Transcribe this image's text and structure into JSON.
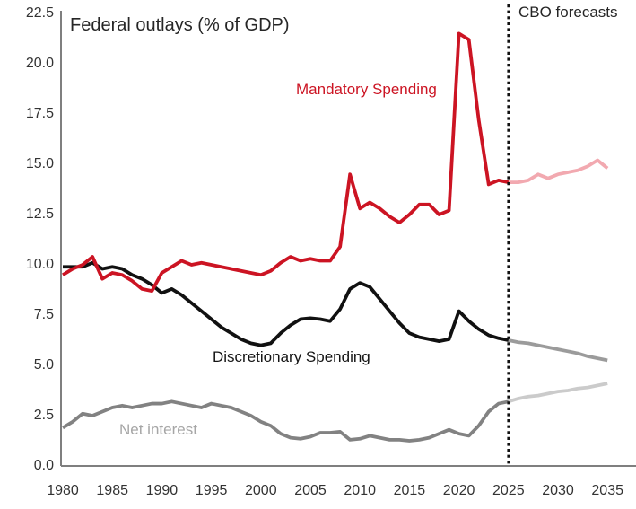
{
  "chart_data": {
    "type": "line",
    "title": "Federal outlays (% of GDP)",
    "xlabel": "",
    "ylabel": "Federal outlays (% of GDP)",
    "xlim": [
      1979.8,
      2037
    ],
    "ylim": [
      0,
      22.5
    ],
    "grid": false,
    "legend_position": "inline-labels",
    "axis_color": "#7f7f7f",
    "tick_color": "#333333",
    "xticks": {
      "values": [
        1980,
        1985,
        1990,
        1995,
        2000,
        2005,
        2010,
        2015,
        2020,
        2025,
        2030,
        2035
      ],
      "labels": [
        "1980",
        "1985",
        "1990",
        "1995",
        "2000",
        "2005",
        "2010",
        "2015",
        "2020",
        "2025",
        "2030",
        "2035"
      ]
    },
    "yticks": {
      "values": [
        0,
        2.5,
        5,
        7.5,
        10,
        12.5,
        15,
        17.5,
        20,
        22.5
      ],
      "labels": [
        "0.0",
        "2.5",
        "5.0",
        "7.5",
        "10.0",
        "12.5",
        "15.0",
        "17.5",
        "20.0",
        "22.5"
      ]
    },
    "forecast_divider": {
      "year": 2025,
      "label": "CBO forecasts",
      "style": "dotted-vertical-line",
      "color": "#111111"
    },
    "annotations": {
      "cbo_forecasts": {
        "text": "CBO forecasts",
        "color": "#262626"
      },
      "mandatory_label": {
        "text": "Mandatory Spending",
        "color": "#cc1423"
      },
      "discretionary_label": {
        "text": "Discretionary Spending",
        "color": "#141414"
      },
      "net_interest_label": {
        "text": "Net interest",
        "color": "#a6a6a6"
      }
    },
    "series": [
      {
        "name": "Net interest (CBO forecast)",
        "segment": "forecast",
        "color": "#cbcbcb",
        "years": [
          2025,
          2026,
          2027,
          2028,
          2029,
          2030,
          2031,
          2032,
          2033,
          2034,
          2035
        ],
        "values": [
          3.2,
          3.35,
          3.45,
          3.5,
          3.6,
          3.7,
          3.75,
          3.85,
          3.9,
          4.0,
          4.1
        ]
      },
      {
        "name": "Net interest",
        "segment": "historical",
        "color": "#828282",
        "years": [
          1980,
          1981,
          1982,
          1983,
          1984,
          1985,
          1986,
          1987,
          1988,
          1989,
          1990,
          1991,
          1992,
          1993,
          1994,
          1995,
          1996,
          1997,
          1998,
          1999,
          2000,
          2001,
          2002,
          2003,
          2004,
          2005,
          2006,
          2007,
          2008,
          2009,
          2010,
          2011,
          2012,
          2013,
          2014,
          2015,
          2016,
          2017,
          2018,
          2019,
          2020,
          2021,
          2022,
          2023,
          2024,
          2025
        ],
        "values": [
          1.9,
          2.2,
          2.6,
          2.5,
          2.7,
          2.9,
          3.0,
          2.9,
          3.0,
          3.1,
          3.1,
          3.2,
          3.1,
          3.0,
          2.9,
          3.1,
          3.0,
          2.9,
          2.7,
          2.5,
          2.2,
          2.0,
          1.6,
          1.4,
          1.35,
          1.45,
          1.65,
          1.65,
          1.7,
          1.3,
          1.35,
          1.5,
          1.4,
          1.3,
          1.3,
          1.25,
          1.3,
          1.4,
          1.6,
          1.8,
          1.6,
          1.5,
          2.0,
          2.7,
          3.1,
          3.2
        ]
      },
      {
        "name": "Discretionary Spending (CBO forecast)",
        "segment": "forecast",
        "color": "#9b9b9b",
        "years": [
          2025,
          2026,
          2027,
          2028,
          2029,
          2030,
          2031,
          2032,
          2033,
          2034,
          2035
        ],
        "values": [
          6.25,
          6.15,
          6.1,
          6.0,
          5.9,
          5.8,
          5.7,
          5.6,
          5.45,
          5.35,
          5.25
        ]
      },
      {
        "name": "Discretionary Spending",
        "segment": "historical",
        "color": "#111111",
        "years": [
          1980,
          1981,
          1982,
          1983,
          1984,
          1985,
          1986,
          1987,
          1988,
          1989,
          1990,
          1991,
          1992,
          1993,
          1994,
          1995,
          1996,
          1997,
          1998,
          1999,
          2000,
          2001,
          2002,
          2003,
          2004,
          2005,
          2006,
          2007,
          2008,
          2009,
          2010,
          2011,
          2012,
          2013,
          2014,
          2015,
          2016,
          2017,
          2018,
          2019,
          2020,
          2021,
          2022,
          2023,
          2024,
          2025
        ],
        "values": [
          9.9,
          9.9,
          9.9,
          10.1,
          9.8,
          9.9,
          9.8,
          9.5,
          9.3,
          9.0,
          8.6,
          8.8,
          8.5,
          8.1,
          7.7,
          7.3,
          6.9,
          6.6,
          6.3,
          6.1,
          6.0,
          6.1,
          6.6,
          7.0,
          7.3,
          7.35,
          7.3,
          7.2,
          7.8,
          8.8,
          9.1,
          8.9,
          8.3,
          7.7,
          7.1,
          6.6,
          6.4,
          6.3,
          6.2,
          6.3,
          7.7,
          7.2,
          6.8,
          6.5,
          6.35,
          6.25
        ]
      },
      {
        "name": "Mandatory Spending (CBO forecast)",
        "segment": "forecast",
        "color": "#f2a9b0",
        "years": [
          2025,
          2026,
          2027,
          2028,
          2029,
          2030,
          2031,
          2032,
          2033,
          2034,
          2035
        ],
        "values": [
          14.1,
          14.1,
          14.2,
          14.5,
          14.3,
          14.5,
          14.6,
          14.7,
          14.9,
          15.2,
          14.8
        ]
      },
      {
        "name": "Mandatory Spending",
        "segment": "historical",
        "color": "#cc1423",
        "years": [
          1980,
          1981,
          1982,
          1983,
          1984,
          1985,
          1986,
          1987,
          1988,
          1989,
          1990,
          1991,
          1992,
          1993,
          1994,
          1995,
          1996,
          1997,
          1998,
          1999,
          2000,
          2001,
          2002,
          2003,
          2004,
          2005,
          2006,
          2007,
          2008,
          2009,
          2010,
          2011,
          2012,
          2013,
          2014,
          2015,
          2016,
          2017,
          2018,
          2019,
          2020,
          2021,
          2022,
          2023,
          2024,
          2025
        ],
        "values": [
          9.5,
          9.8,
          10.0,
          10.4,
          9.3,
          9.6,
          9.5,
          9.2,
          8.8,
          8.7,
          9.6,
          9.9,
          10.2,
          10.0,
          10.1,
          10.0,
          9.9,
          9.8,
          9.7,
          9.6,
          9.5,
          9.7,
          10.1,
          10.4,
          10.2,
          10.3,
          10.2,
          10.2,
          10.9,
          14.5,
          12.8,
          13.1,
          12.8,
          12.4,
          12.1,
          12.5,
          13.0,
          13.0,
          12.5,
          12.7,
          21.5,
          21.2,
          17.2,
          14.0,
          14.2,
          14.1
        ]
      }
    ]
  }
}
